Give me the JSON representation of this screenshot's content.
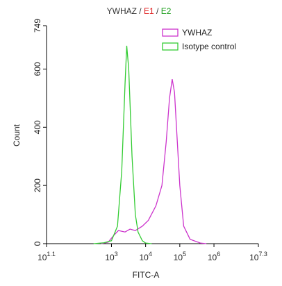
{
  "chart_data": {
    "type": "line",
    "title": {
      "parts": [
        "YWHAZ",
        " / ",
        "E1",
        " / ",
        "E2"
      ],
      "colors": [
        "#333333",
        "#333333",
        "#e02020",
        "#333333",
        "#20a020"
      ]
    },
    "xlabel": "FITC-A",
    "ylabel": "Count",
    "xscale": "log",
    "xlim": [
      12.59,
      19952623
    ],
    "xticks": [
      {
        "value": 12.59,
        "label": {
          "base": "10",
          "power": "1.1"
        }
      },
      {
        "value": 1000,
        "label": {
          "base": "10",
          "power": "3"
        }
      },
      {
        "value": 10000,
        "label": {
          "base": "10",
          "power": "4"
        }
      },
      {
        "value": 100000,
        "label": {
          "base": "10",
          "power": "5"
        }
      },
      {
        "value": 1000000,
        "label": {
          "base": "10",
          "power": "6"
        }
      },
      {
        "value": 19952623,
        "label": {
          "base": "10",
          "power": "7.3"
        }
      }
    ],
    "ylim": [
      0,
      749
    ],
    "yticks": [
      0,
      200,
      400,
      600,
      749
    ],
    "legend": "top-right",
    "series": [
      {
        "name": "YWHAZ",
        "color": "#cc33cc",
        "x": [
          500,
          800,
          1200,
          1600,
          2500,
          3500,
          5000,
          8000,
          12000,
          20000,
          30000,
          40000,
          50000,
          60000,
          70000,
          80000,
          100000,
          130000,
          200000,
          400000,
          600000
        ],
        "values": [
          0,
          5,
          30,
          45,
          40,
          50,
          45,
          60,
          80,
          130,
          200,
          350,
          500,
          565,
          520,
          400,
          200,
          60,
          15,
          2,
          0
        ]
      },
      {
        "name": "Isotype control",
        "color": "#33cc33",
        "x": [
          300,
          600,
          1000,
          1500,
          2000,
          2500,
          2800,
          3200,
          4000,
          5000,
          6000,
          8000,
          10000,
          15000
        ],
        "values": [
          0,
          3,
          10,
          60,
          250,
          550,
          680,
          600,
          300,
          100,
          40,
          10,
          2,
          0
        ]
      }
    ]
  }
}
